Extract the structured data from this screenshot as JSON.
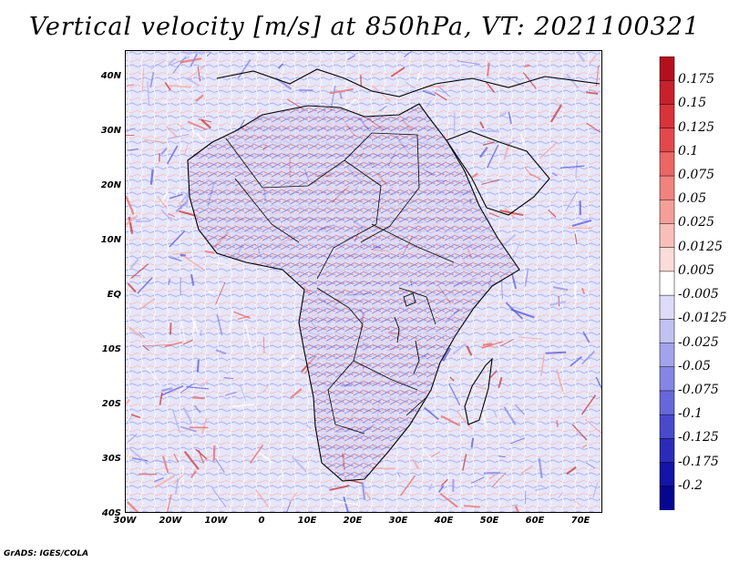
{
  "title": "Vertical velocity [m/s] at 850hPa, VT: 2021100321",
  "credit": "GrADS: IGES/COLA",
  "map": {
    "lat_ticks": [
      "40N",
      "30N",
      "20N",
      "10N",
      "EQ",
      "10S",
      "20S",
      "30S",
      "40S"
    ],
    "lon_ticks": [
      "30W",
      "20W",
      "10W",
      "0",
      "10E",
      "20E",
      "30E",
      "40E",
      "50E",
      "60E",
      "70E"
    ],
    "lon_range": [
      -30,
      75
    ],
    "lat_range": [
      -40,
      45
    ]
  },
  "colorbar": {
    "labels": [
      "0.175",
      "0.15",
      "0.125",
      "0.1",
      "0.075",
      "0.05",
      "0.025",
      "0.0125",
      "0.005",
      "-0.005",
      "-0.0125",
      "-0.025",
      "-0.05",
      "-0.075",
      "-0.1",
      "-0.125",
      "-0.175",
      "-0.2"
    ],
    "colors": [
      "#b40f1f",
      "#c8202c",
      "#d8333a",
      "#e2484c",
      "#eb6664",
      "#f0837e",
      "#f49f99",
      "#f8bfba",
      "#fbdcd8",
      "#ffffff",
      "#dcdcf8",
      "#c1c1f2",
      "#a3a3ec",
      "#8585e4",
      "#6767da",
      "#4949cc",
      "#2b2bba",
      "#1414a6",
      "#060690"
    ]
  }
}
